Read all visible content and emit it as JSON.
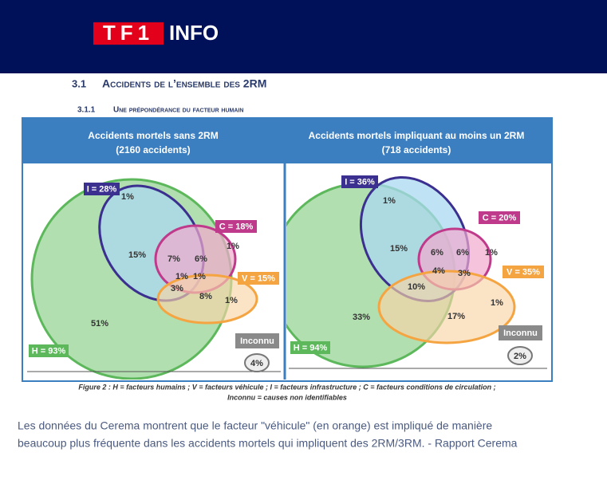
{
  "header": {
    "logo_tf1": "TF1",
    "logo_info": "INFO"
  },
  "section": {
    "number": "3.1",
    "title": "Accidents de l’ensemble des 2RM"
  },
  "subsection": {
    "number": "3.1.1",
    "title": "Une prépondérance du facteur humain"
  },
  "figure": {
    "panels": [
      {
        "title": "Accidents mortels sans 2RM",
        "subtitle": "(2160 accidents)",
        "sets": [
          {
            "label": "H = 93%"
          },
          {
            "label": "I = 28%"
          },
          {
            "label": "C = 18%"
          },
          {
            "label": "V = 15%"
          }
        ],
        "regions": [
          "1%",
          "15%",
          "7%",
          "6%",
          "1%",
          "1%",
          "1%",
          "3%",
          "8%",
          "1%",
          "51%"
        ],
        "unknown_label": "Inconnu",
        "unknown_value": "4%"
      },
      {
        "title": "Accidents mortels impliquant au moins un 2RM",
        "subtitle": "(718 accidents)",
        "sets": [
          {
            "label": "H = 94%"
          },
          {
            "label": "I = 36%"
          },
          {
            "label": "C = 20%"
          },
          {
            "label": "V = 35%"
          }
        ],
        "regions": [
          "1%",
          "15%",
          "6%",
          "6%",
          "1%",
          "4%",
          "3%",
          "10%",
          "17%",
          "1%",
          "33%"
        ],
        "unknown_label": "Inconnu",
        "unknown_value": "2%"
      }
    ],
    "caption": [
      "Figure 2 : H = facteurs humains ; V = facteurs véhicule ; I = facteurs infrastructure ; C = facteurs conditions de circulation ;",
      "Inconnu = causes non identifiables"
    ]
  },
  "paragraph": [
    "Les données du Cerema montrent que le facteur \"véhicule\" (en orange) est impliqué de manière",
    "beaucoup plus fréquente dans les accidents mortels qui impliquent des 2RM/3RM. - Rapport Cerema"
  ]
}
